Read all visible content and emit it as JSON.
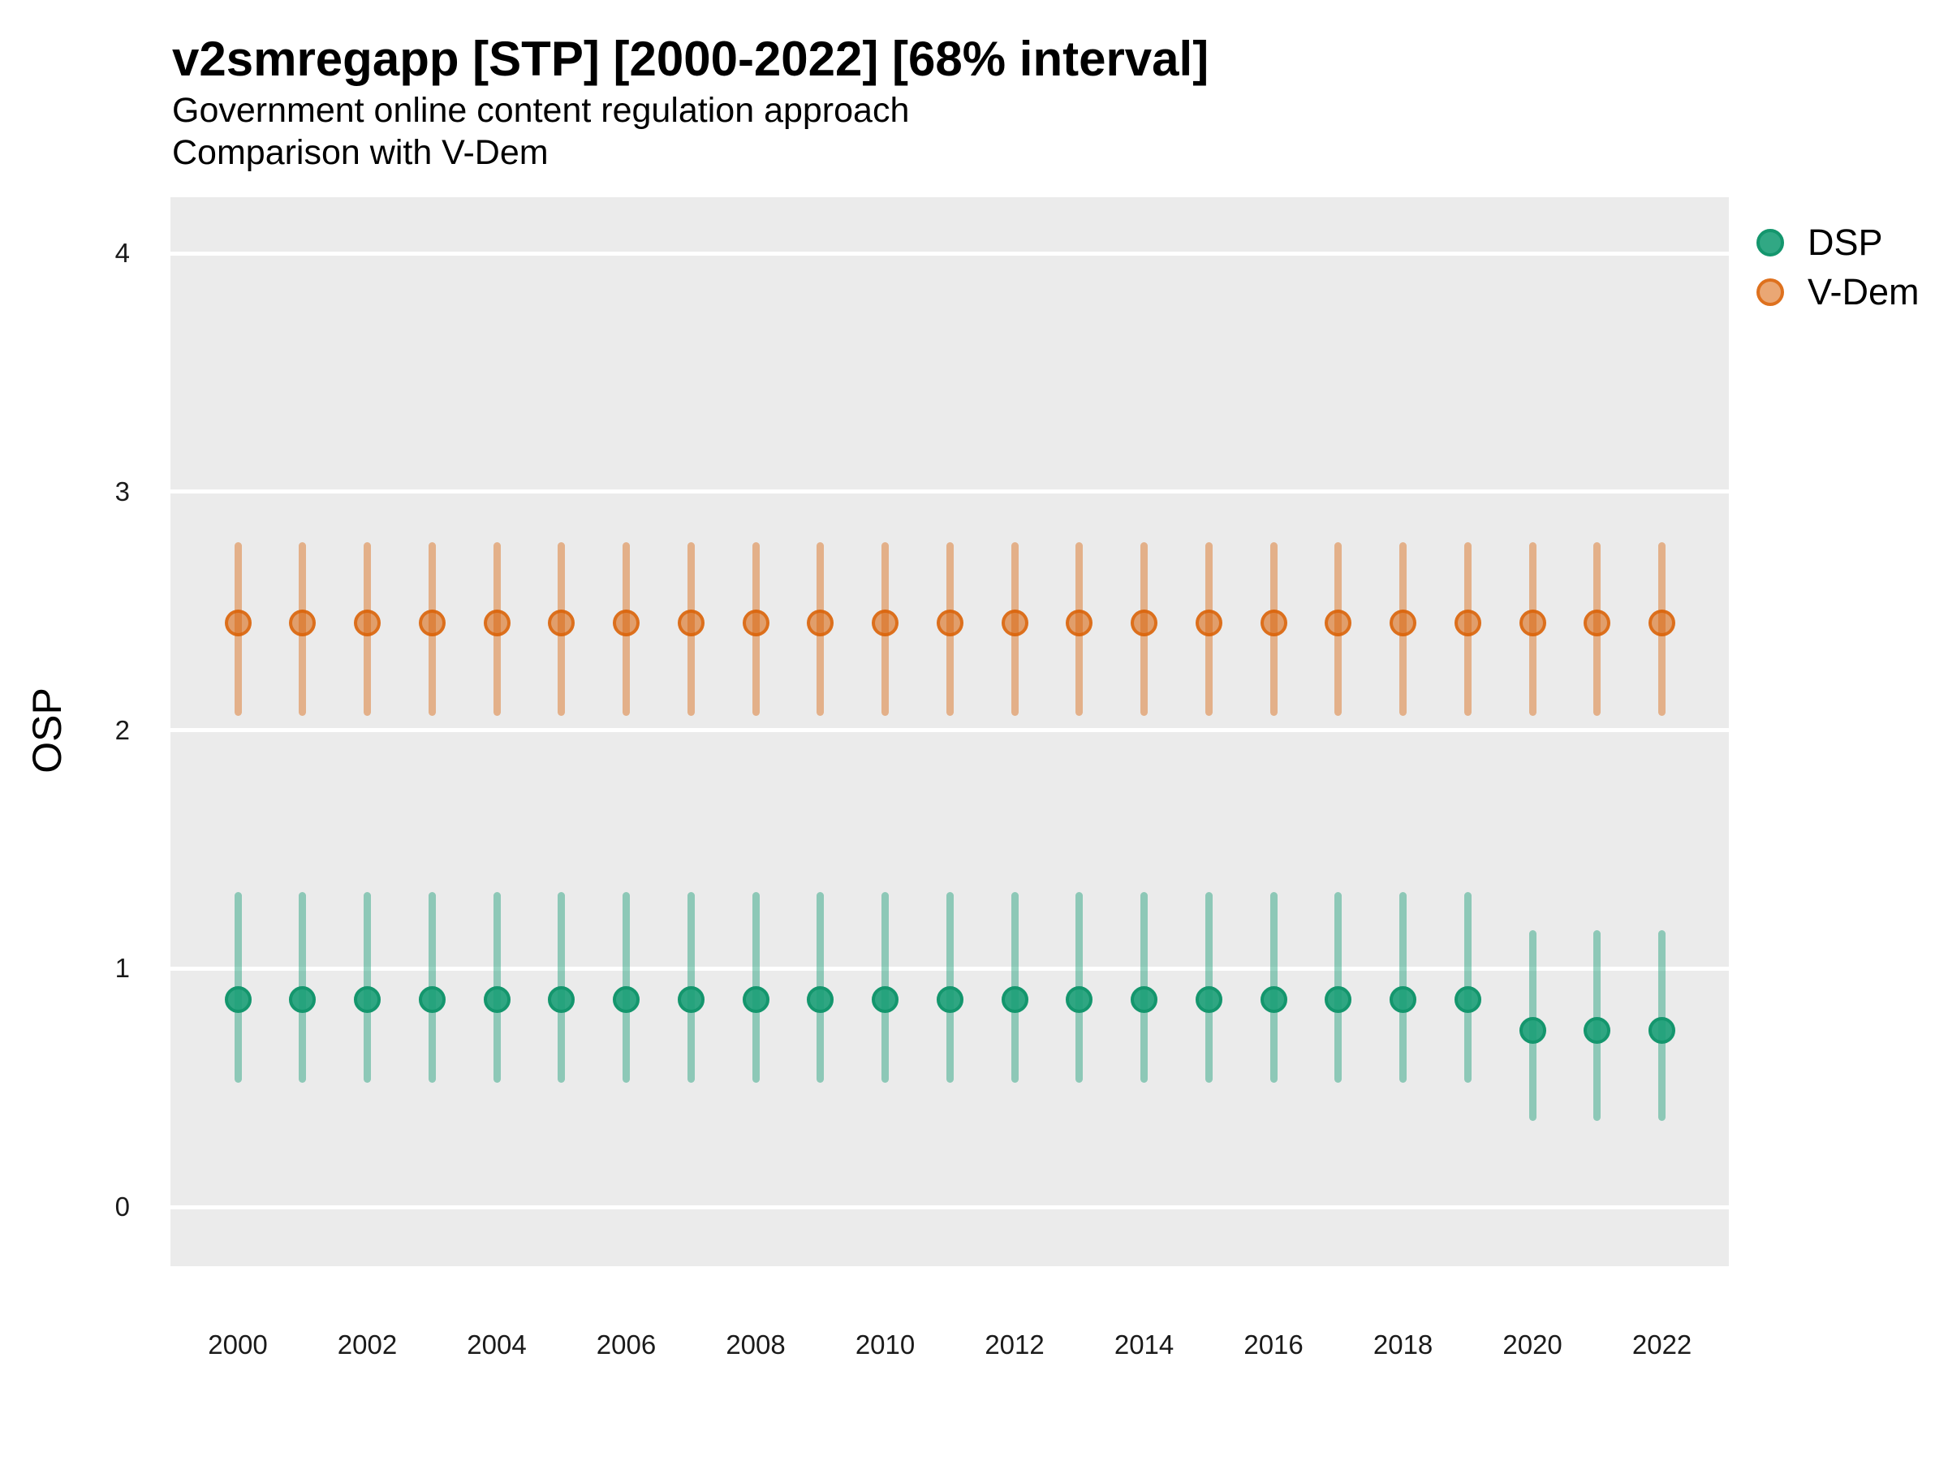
{
  "header": {
    "title": "v2smregapp [STP] [2000-2022] [68% interval]",
    "subtitle_line1": "Government online content regulation approach",
    "subtitle_line2": "Comparison with V-Dem"
  },
  "axes": {
    "y_label": "OSP",
    "y_ticks": [
      0,
      1,
      2,
      3,
      4
    ],
    "x_ticks": [
      2000,
      2002,
      2004,
      2006,
      2008,
      2010,
      2012,
      2014,
      2016,
      2018,
      2020,
      2022
    ]
  },
  "legend": {
    "items": [
      {
        "label": "DSP",
        "fill": "rgba(27,158,119,0.9)",
        "stroke": "rgba(20,150,109,1)"
      },
      {
        "label": "V-Dem",
        "fill": "rgba(217,95,2,0.55)",
        "stroke": "rgba(217,95,2,0.75)"
      }
    ]
  },
  "colors": {
    "figure_bg": "#FFFFFF",
    "panel_bg": "#EBEBEB",
    "gridline": "#FFFFFF",
    "title_text": "#000000",
    "axis_text": "#1A1A1A",
    "dsp_green": "#1B9E77",
    "vdem_orange": "#D95F02"
  },
  "chart_data": {
    "type": "scatter",
    "title": "v2smregapp [STP] [2000-2022] [68% interval]",
    "subtitle": "Government online content regulation approach — Comparison with V-Dem",
    "xlabel": "",
    "ylabel": "OSP",
    "interval": "68%",
    "ylim": [
      -0.25,
      4.24
    ],
    "grid": "horizontal-major-only",
    "legend_position": "right-top",
    "x": [
      2000,
      2001,
      2002,
      2003,
      2004,
      2005,
      2006,
      2007,
      2008,
      2009,
      2010,
      2011,
      2012,
      2013,
      2014,
      2015,
      2016,
      2017,
      2018,
      2019,
      2020,
      2021,
      2022
    ],
    "series": [
      {
        "name": "V-Dem",
        "point_fill": "rgba(217,95,2,0.55)",
        "point_stroke": "rgba(217,95,2,0.75)",
        "bar_color": "rgba(217,95,2,0.42)",
        "values": [
          2.45,
          2.45,
          2.45,
          2.45,
          2.45,
          2.45,
          2.45,
          2.45,
          2.45,
          2.45,
          2.45,
          2.45,
          2.45,
          2.45,
          2.45,
          2.45,
          2.45,
          2.45,
          2.45,
          2.45,
          2.45,
          2.45,
          2.45
        ],
        "lower": [
          2.06,
          2.06,
          2.06,
          2.06,
          2.06,
          2.06,
          2.06,
          2.06,
          2.06,
          2.06,
          2.06,
          2.06,
          2.06,
          2.06,
          2.06,
          2.06,
          2.06,
          2.06,
          2.06,
          2.06,
          2.06,
          2.06,
          2.06
        ],
        "upper": [
          2.79,
          2.79,
          2.79,
          2.79,
          2.79,
          2.79,
          2.79,
          2.79,
          2.79,
          2.79,
          2.79,
          2.79,
          2.79,
          2.79,
          2.79,
          2.79,
          2.79,
          2.79,
          2.79,
          2.79,
          2.79,
          2.79,
          2.79
        ]
      },
      {
        "name": "DSP",
        "point_fill": "rgba(27,158,119,0.9)",
        "point_stroke": "rgba(20,150,109,1)",
        "bar_color": "rgba(27,158,119,0.45)",
        "values": [
          0.87,
          0.87,
          0.87,
          0.87,
          0.87,
          0.87,
          0.87,
          0.87,
          0.87,
          0.87,
          0.87,
          0.87,
          0.87,
          0.87,
          0.87,
          0.87,
          0.87,
          0.87,
          0.87,
          0.87,
          0.74,
          0.74,
          0.74
        ],
        "lower": [
          0.52,
          0.52,
          0.52,
          0.52,
          0.52,
          0.52,
          0.52,
          0.52,
          0.52,
          0.52,
          0.52,
          0.52,
          0.52,
          0.52,
          0.52,
          0.52,
          0.52,
          0.52,
          0.52,
          0.52,
          0.36,
          0.36,
          0.36
        ],
        "upper": [
          1.32,
          1.32,
          1.32,
          1.32,
          1.32,
          1.32,
          1.32,
          1.32,
          1.32,
          1.32,
          1.32,
          1.32,
          1.32,
          1.32,
          1.32,
          1.32,
          1.32,
          1.32,
          1.32,
          1.32,
          1.16,
          1.16,
          1.16
        ]
      }
    ]
  }
}
